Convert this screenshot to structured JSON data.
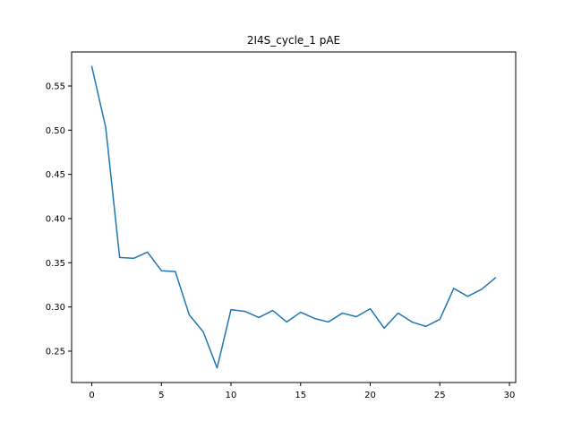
{
  "chart_data": {
    "type": "line",
    "title": "2I4S_cycle_1 pAE",
    "xlabel": "",
    "ylabel": "",
    "xlim": [
      -1.45,
      30.45
    ],
    "ylim": [
      0.2145,
      0.5885
    ],
    "xticks": [
      0,
      5,
      10,
      15,
      20,
      25,
      30
    ],
    "yticks": [
      0.25,
      0.3,
      0.35,
      0.4,
      0.45,
      0.5,
      0.55
    ],
    "ytick_labels": [
      "0.25",
      "0.30",
      "0.35",
      "0.40",
      "0.45",
      "0.50",
      "0.55"
    ],
    "grid": false,
    "series": [
      {
        "color": "#1f77b4",
        "x": [
          0,
          1,
          2,
          3,
          4,
          5,
          6,
          7,
          8,
          9,
          10,
          11,
          12,
          13,
          14,
          15,
          16,
          17,
          18,
          19,
          20,
          21,
          22,
          23,
          24,
          25,
          26,
          27,
          28,
          29
        ],
        "values": [
          0.572,
          0.503,
          0.356,
          0.355,
          0.362,
          0.341,
          0.34,
          0.291,
          0.272,
          0.231,
          0.297,
          0.295,
          0.288,
          0.296,
          0.283,
          0.294,
          0.287,
          0.283,
          0.293,
          0.289,
          0.298,
          0.276,
          0.293,
          0.283,
          0.278,
          0.286,
          0.321,
          0.312,
          0.32,
          0.333
        ]
      }
    ]
  }
}
